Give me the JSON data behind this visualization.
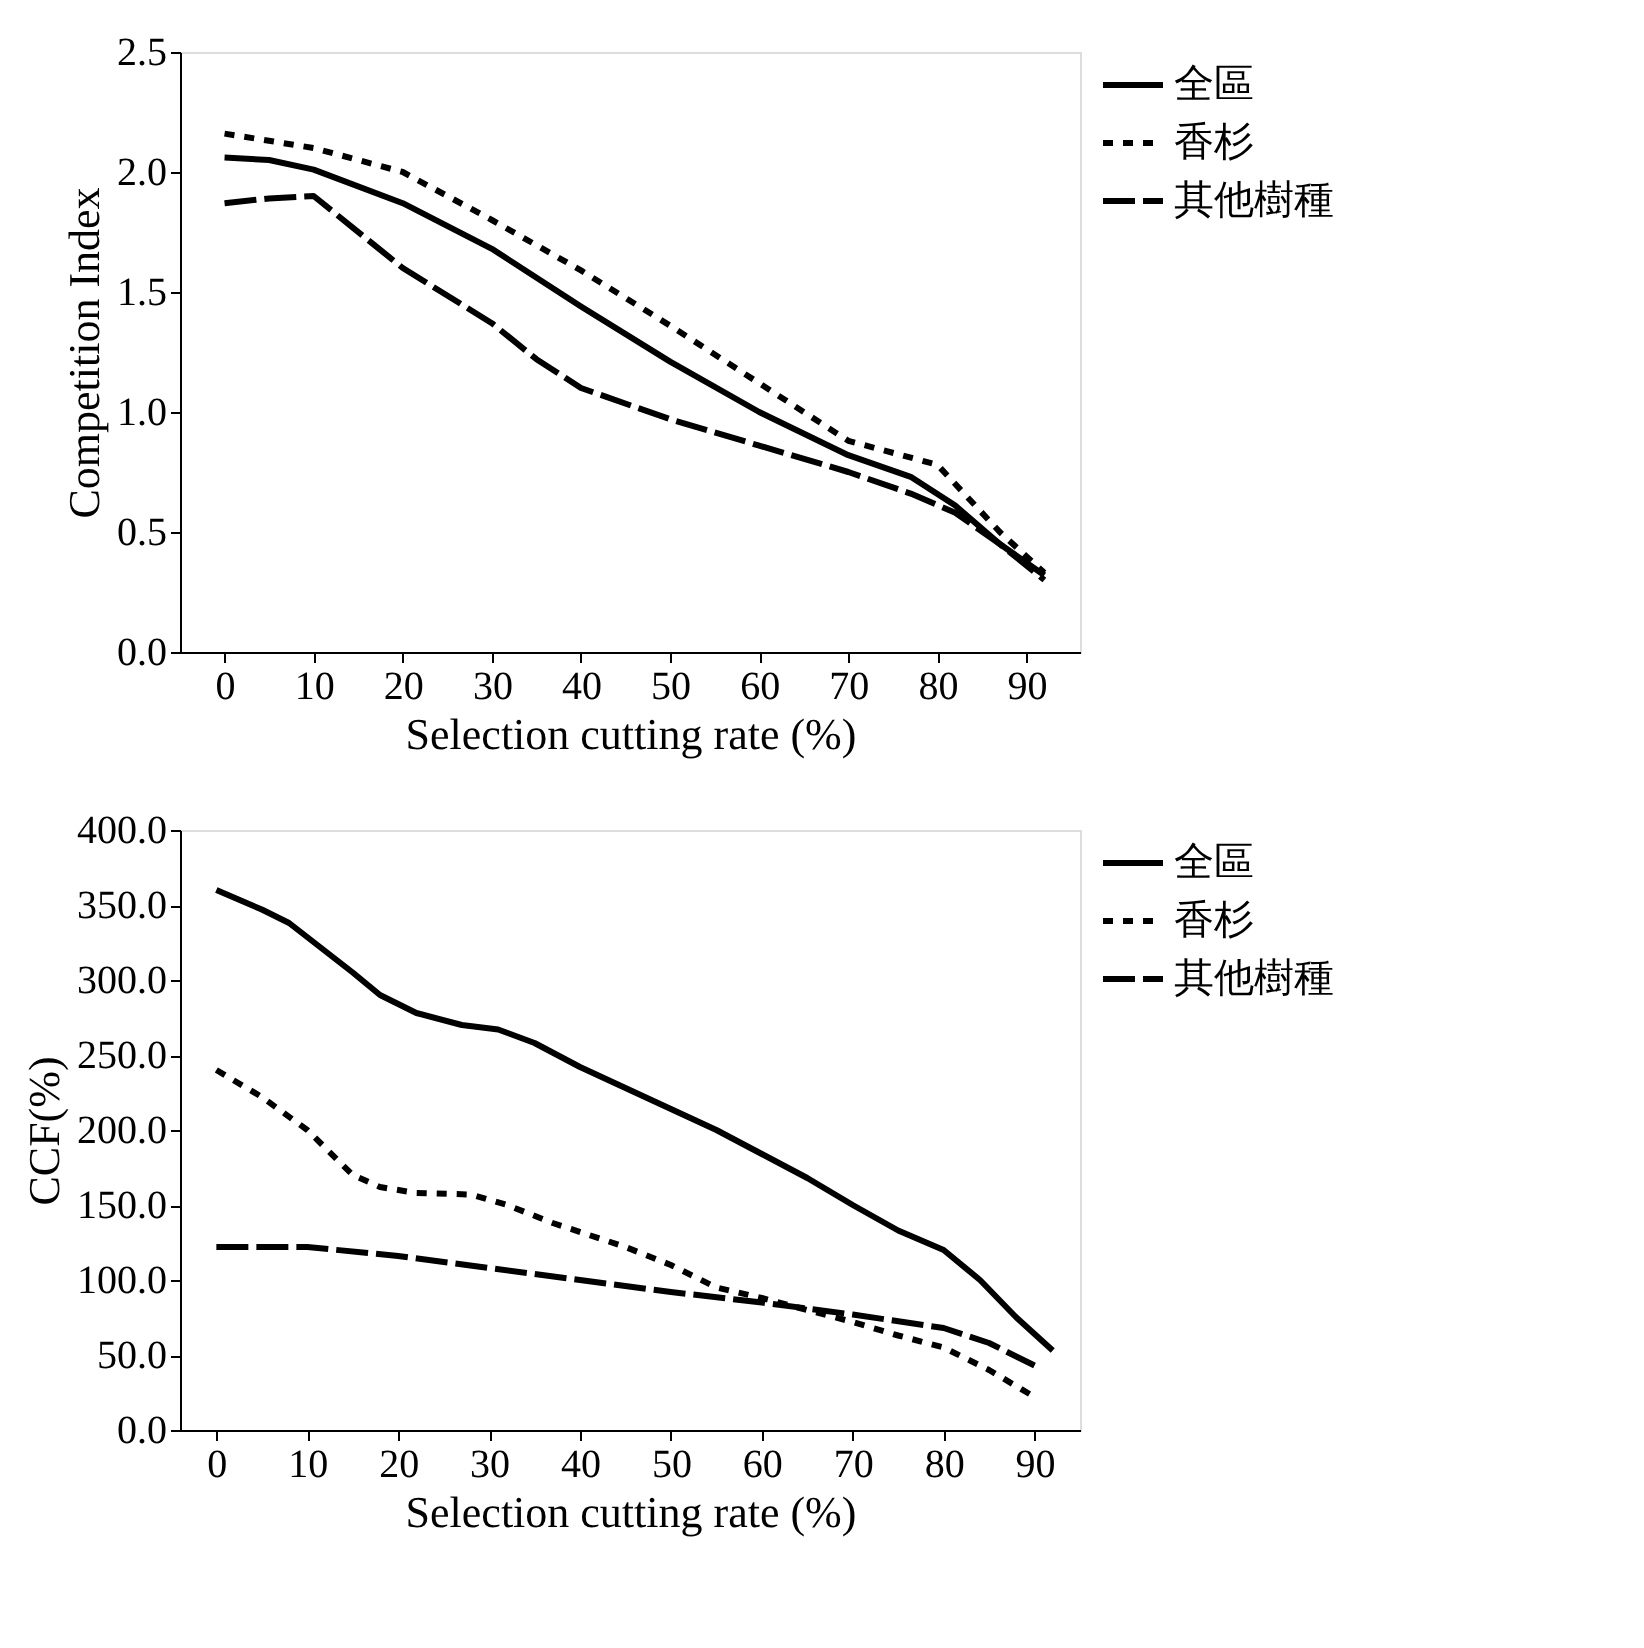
{
  "chart_data": [
    {
      "type": "line",
      "xlabel": "Selection cutting rate (%)",
      "ylabel": "Competition Index",
      "xlim": [
        -5,
        96
      ],
      "xticks": [
        0,
        10,
        20,
        30,
        40,
        50,
        60,
        70,
        80,
        90
      ],
      "ylim": [
        0,
        2.5
      ],
      "yticks": [
        {
          "value": 0,
          "label": "0.0"
        },
        {
          "value": 0.5,
          "label": "0.5"
        },
        {
          "value": 1,
          "label": "1.0"
        },
        {
          "value": 1.5,
          "label": "1.5"
        },
        {
          "value": 2,
          "label": "2.0"
        },
        {
          "value": 2.5,
          "label": "2.5"
        }
      ],
      "grid": false,
      "legend": "right",
      "marker": "none",
      "series": [
        {
          "name": "全區",
          "color": "#000000",
          "line_style": "solid",
          "x": [
            0,
            5,
            10,
            20,
            30,
            40,
            50,
            60,
            70,
            77,
            82,
            87,
            92
          ],
          "values": [
            2.06,
            2.05,
            2.01,
            1.87,
            1.68,
            1.44,
            1.21,
            1.0,
            0.82,
            0.73,
            0.61,
            0.45,
            0.32
          ]
        },
        {
          "name": "香杉",
          "color": "#000000",
          "line_style": "dotted",
          "x": [
            0,
            10,
            20,
            30,
            40,
            50,
            60,
            70,
            80,
            87,
            92
          ],
          "values": [
            2.16,
            2.1,
            2.0,
            1.8,
            1.59,
            1.36,
            1.12,
            0.88,
            0.78,
            0.5,
            0.33
          ]
        },
        {
          "name": "其他樹種",
          "color": "#000000",
          "line_style": "dashed",
          "x": [
            0,
            5,
            10,
            20,
            30,
            35,
            40,
            50,
            60,
            70,
            77,
            82,
            87,
            92
          ],
          "values": [
            1.87,
            1.89,
            1.9,
            1.6,
            1.37,
            1.22,
            1.1,
            0.97,
            0.86,
            0.75,
            0.66,
            0.58,
            0.45,
            0.3
          ]
        }
      ]
    },
    {
      "type": "line",
      "xlabel": "Selection cutting rate (%)",
      "ylabel": "CCF(%)",
      "xlim": [
        -4,
        95
      ],
      "xticks": [
        0,
        10,
        20,
        30,
        40,
        50,
        60,
        70,
        80,
        90
      ],
      "ylim": [
        0,
        400
      ],
      "yticks": [
        {
          "value": 0,
          "label": "0.0"
        },
        {
          "value": 50,
          "label": "50.0"
        },
        {
          "value": 100,
          "label": "100.0"
        },
        {
          "value": 150,
          "label": "150.0"
        },
        {
          "value": 200,
          "label": "200.0"
        },
        {
          "value": 250,
          "label": "250.0"
        },
        {
          "value": 300,
          "label": "300.0"
        },
        {
          "value": 350,
          "label": "350.0"
        },
        {
          "value": 400,
          "label": "400.0"
        }
      ],
      "grid": false,
      "legend": "right",
      "marker": "none",
      "series": [
        {
          "name": "全區",
          "color": "#000000",
          "line_style": "solid",
          "x": [
            0,
            5,
            8,
            15,
            18,
            22,
            27,
            31,
            35,
            40,
            45,
            50,
            55,
            60,
            65,
            70,
            75,
            80,
            84,
            88,
            92
          ],
          "values": [
            360,
            347,
            338,
            305,
            290,
            278,
            270,
            267,
            258,
            242,
            228,
            214,
            200,
            184,
            168,
            150,
            133,
            120,
            100,
            75,
            53
          ]
        },
        {
          "name": "香杉",
          "color": "#000000",
          "line_style": "dotted",
          "x": [
            0,
            5,
            10,
            15,
            18,
            22,
            28,
            32,
            37,
            45,
            50,
            55,
            60,
            65,
            70,
            75,
            80,
            85,
            90
          ],
          "values": [
            240,
            222,
            200,
            170,
            162,
            158,
            157,
            150,
            138,
            122,
            110,
            95,
            88,
            80,
            72,
            63,
            55,
            40,
            22
          ]
        },
        {
          "name": "其他樹種",
          "color": "#000000",
          "line_style": "dashed",
          "x": [
            0,
            10,
            20,
            30,
            40,
            50,
            60,
            70,
            80,
            85,
            90
          ],
          "values": [
            122,
            122,
            116,
            108,
            100,
            92,
            85,
            77,
            68,
            58,
            43
          ]
        }
      ]
    }
  ]
}
